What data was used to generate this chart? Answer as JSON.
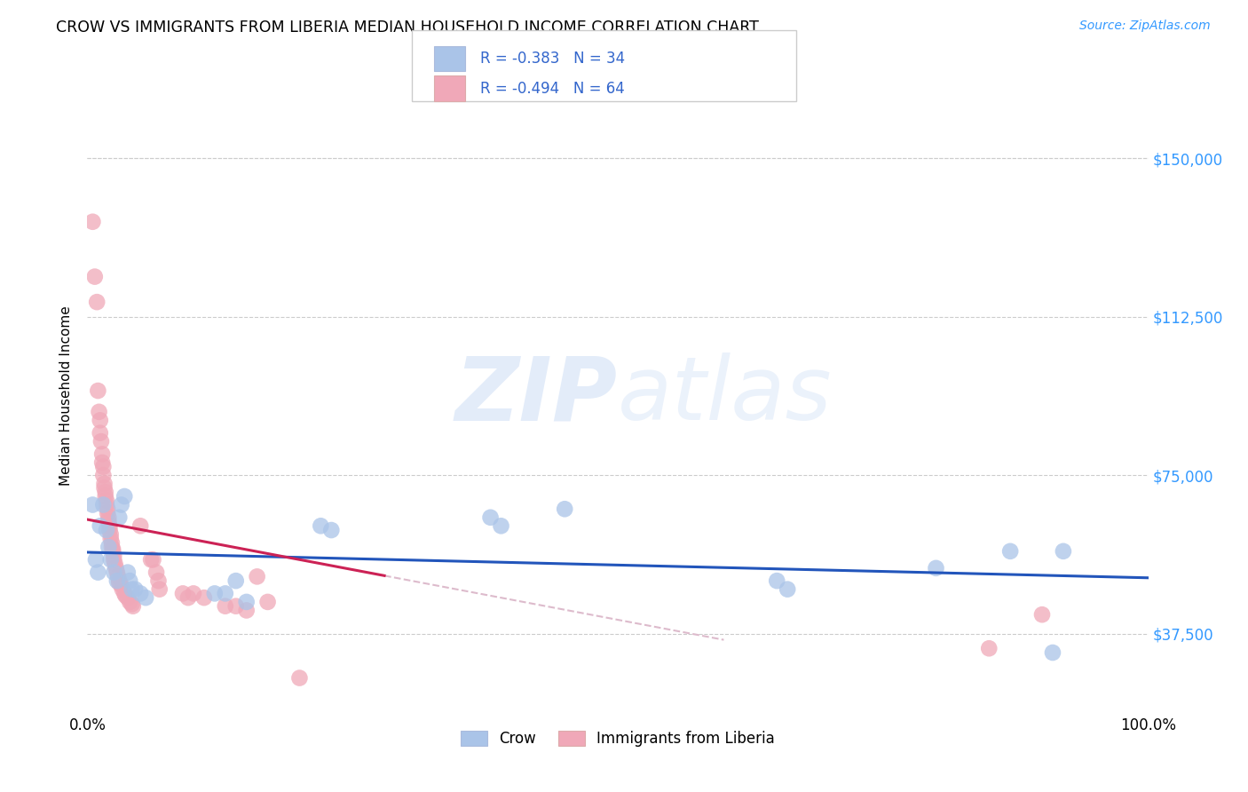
{
  "title": "CROW VS IMMIGRANTS FROM LIBERIA MEDIAN HOUSEHOLD INCOME CORRELATION CHART",
  "source": "Source: ZipAtlas.com",
  "ylabel": "Median Household Income",
  "xlim": [
    0,
    1.0
  ],
  "ylim": [
    18750,
    168750
  ],
  "xtick_labels": [
    "0.0%",
    "100.0%"
  ],
  "ytick_positions": [
    37500,
    75000,
    112500,
    150000
  ],
  "ytick_labels": [
    "$37,500",
    "$75,000",
    "$112,500",
    "$150,000"
  ],
  "grid_color": "#cccccc",
  "background_color": "#ffffff",
  "crow_color": "#aac4e8",
  "liberia_color": "#f0a8b8",
  "crow_line_color": "#2255bb",
  "liberia_line_color": "#cc2255",
  "liberia_line_dashed_color": "#ddbbcc",
  "watermark_zip": "ZIP",
  "watermark_atlas": "atlas",
  "legend_text_color": "#3366cc",
  "legend_R_crow": "R = -0.383",
  "legend_N_crow": "N = 34",
  "legend_R_liberia": "R = -0.494",
  "legend_N_liberia": "N = 64",
  "crow_points": [
    [
      0.005,
      68000
    ],
    [
      0.008,
      55000
    ],
    [
      0.01,
      52000
    ],
    [
      0.012,
      63000
    ],
    [
      0.015,
      68000
    ],
    [
      0.018,
      62000
    ],
    [
      0.02,
      58000
    ],
    [
      0.022,
      55000
    ],
    [
      0.025,
      52000
    ],
    [
      0.028,
      50000
    ],
    [
      0.03,
      65000
    ],
    [
      0.032,
      68000
    ],
    [
      0.035,
      70000
    ],
    [
      0.038,
      52000
    ],
    [
      0.04,
      50000
    ],
    [
      0.042,
      48000
    ],
    [
      0.045,
      48000
    ],
    [
      0.05,
      47000
    ],
    [
      0.055,
      46000
    ],
    [
      0.12,
      47000
    ],
    [
      0.13,
      47000
    ],
    [
      0.14,
      50000
    ],
    [
      0.15,
      45000
    ],
    [
      0.22,
      63000
    ],
    [
      0.23,
      62000
    ],
    [
      0.38,
      65000
    ],
    [
      0.39,
      63000
    ],
    [
      0.45,
      67000
    ],
    [
      0.65,
      50000
    ],
    [
      0.66,
      48000
    ],
    [
      0.8,
      53000
    ],
    [
      0.87,
      57000
    ],
    [
      0.92,
      57000
    ],
    [
      0.91,
      33000
    ]
  ],
  "liberia_points": [
    [
      0.005,
      135000
    ],
    [
      0.007,
      122000
    ],
    [
      0.009,
      116000
    ],
    [
      0.01,
      95000
    ],
    [
      0.011,
      90000
    ],
    [
      0.012,
      88000
    ],
    [
      0.012,
      85000
    ],
    [
      0.013,
      83000
    ],
    [
      0.014,
      80000
    ],
    [
      0.014,
      78000
    ],
    [
      0.015,
      77000
    ],
    [
      0.015,
      75000
    ],
    [
      0.016,
      73000
    ],
    [
      0.016,
      72000
    ],
    [
      0.017,
      71000
    ],
    [
      0.017,
      70000
    ],
    [
      0.018,
      69000
    ],
    [
      0.018,
      68000
    ],
    [
      0.019,
      67000
    ],
    [
      0.019,
      66000
    ],
    [
      0.02,
      65000
    ],
    [
      0.02,
      64000
    ],
    [
      0.021,
      63000
    ],
    [
      0.021,
      62000
    ],
    [
      0.022,
      61000
    ],
    [
      0.022,
      60000
    ],
    [
      0.023,
      59000
    ],
    [
      0.023,
      58000
    ],
    [
      0.024,
      57000
    ],
    [
      0.024,
      57500
    ],
    [
      0.025,
      56000
    ],
    [
      0.025,
      55000
    ],
    [
      0.026,
      54000
    ],
    [
      0.027,
      53000
    ],
    [
      0.028,
      52000
    ],
    [
      0.029,
      51000
    ],
    [
      0.03,
      50000
    ],
    [
      0.03,
      49500
    ],
    [
      0.032,
      49000
    ],
    [
      0.033,
      48000
    ],
    [
      0.035,
      47000
    ],
    [
      0.036,
      46500
    ],
    [
      0.038,
      46000
    ],
    [
      0.04,
      45000
    ],
    [
      0.042,
      44500
    ],
    [
      0.043,
      44000
    ],
    [
      0.05,
      63000
    ],
    [
      0.06,
      55000
    ],
    [
      0.062,
      55000
    ],
    [
      0.065,
      52000
    ],
    [
      0.067,
      50000
    ],
    [
      0.068,
      48000
    ],
    [
      0.09,
      47000
    ],
    [
      0.095,
      46000
    ],
    [
      0.1,
      47000
    ],
    [
      0.11,
      46000
    ],
    [
      0.13,
      44000
    ],
    [
      0.14,
      44000
    ],
    [
      0.15,
      43000
    ],
    [
      0.16,
      51000
    ],
    [
      0.17,
      45000
    ],
    [
      0.2,
      27000
    ],
    [
      0.85,
      34000
    ],
    [
      0.9,
      42000
    ]
  ]
}
